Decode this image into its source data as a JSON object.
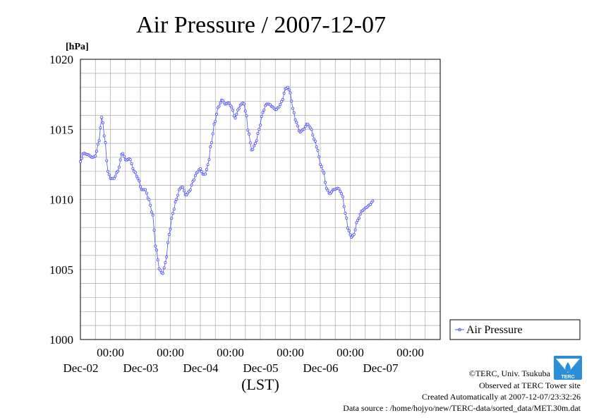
{
  "chart_data": {
    "type": "line",
    "title": "Air Pressure / 2007-12-07",
    "ylabel": "[hPa]",
    "xlabel": "(LST)",
    "ylim": [
      1000,
      1020
    ],
    "yticks": [
      1000,
      1005,
      1010,
      1015,
      1020
    ],
    "ytick_labels": [
      "1000",
      "1005",
      "1010",
      "1015",
      "1020"
    ],
    "xlim": [
      0,
      6
    ],
    "x_unit": "days (Dec-01 12:00 LST to Dec-07 12:00 LST, 30-min samples)",
    "x_ticks": [
      {
        "time": "00:00",
        "date": "Dec-02"
      },
      {
        "time": "00:00",
        "date": "Dec-03"
      },
      {
        "time": "00:00",
        "date": "Dec-04"
      },
      {
        "time": "00:00",
        "date": "Dec-05"
      },
      {
        "time": "00:00",
        "date": "Dec-06"
      },
      {
        "time": "00:00",
        "date": "Dec-07"
      }
    ],
    "grid": true,
    "legend_position": "right",
    "series": [
      {
        "name": "Air Pressure",
        "color": "#3333ff",
        "keypoints": [
          [
            0.0,
            1012.7
          ],
          [
            0.05,
            1013.3
          ],
          [
            0.12,
            1013.2
          ],
          [
            0.2,
            1013.0
          ],
          [
            0.25,
            1013.1
          ],
          [
            0.3,
            1014.0
          ],
          [
            0.36,
            1015.9
          ],
          [
            0.4,
            1014.5
          ],
          [
            0.46,
            1012.0
          ],
          [
            0.5,
            1011.5
          ],
          [
            0.56,
            1011.5
          ],
          [
            0.62,
            1012.0
          ],
          [
            0.7,
            1013.3
          ],
          [
            0.76,
            1012.8
          ],
          [
            0.82,
            1012.9
          ],
          [
            0.9,
            1012.0
          ],
          [
            0.96,
            1011.5
          ],
          [
            1.02,
            1010.7
          ],
          [
            1.08,
            1010.7
          ],
          [
            1.14,
            1010.0
          ],
          [
            1.2,
            1009.0
          ],
          [
            1.26,
            1006.5
          ],
          [
            1.32,
            1005.0
          ],
          [
            1.37,
            1004.7
          ],
          [
            1.42,
            1005.5
          ],
          [
            1.48,
            1007.5
          ],
          [
            1.54,
            1009.0
          ],
          [
            1.6,
            1010.0
          ],
          [
            1.66,
            1010.8
          ],
          [
            1.7,
            1010.9
          ],
          [
            1.76,
            1010.3
          ],
          [
            1.82,
            1010.6
          ],
          [
            1.88,
            1011.3
          ],
          [
            1.94,
            1011.9
          ],
          [
            2.0,
            1012.2
          ],
          [
            2.04,
            1011.8
          ],
          [
            2.08,
            1011.8
          ],
          [
            2.13,
            1012.5
          ],
          [
            2.18,
            1014.0
          ],
          [
            2.24,
            1015.5
          ],
          [
            2.3,
            1016.6
          ],
          [
            2.36,
            1017.1
          ],
          [
            2.42,
            1016.8
          ],
          [
            2.47,
            1016.9
          ],
          [
            2.52,
            1016.6
          ],
          [
            2.58,
            1015.8
          ],
          [
            2.63,
            1016.4
          ],
          [
            2.68,
            1016.8
          ],
          [
            2.72,
            1016.9
          ],
          [
            2.76,
            1016.2
          ],
          [
            2.8,
            1014.8
          ],
          [
            2.86,
            1013.5
          ],
          [
            2.92,
            1014.0
          ],
          [
            2.98,
            1015.0
          ],
          [
            3.04,
            1016.2
          ],
          [
            3.1,
            1016.8
          ],
          [
            3.15,
            1016.8
          ],
          [
            3.2,
            1016.6
          ],
          [
            3.26,
            1016.4
          ],
          [
            3.31,
            1016.6
          ],
          [
            3.36,
            1017.0
          ],
          [
            3.42,
            1017.9
          ],
          [
            3.46,
            1018.0
          ],
          [
            3.5,
            1017.6
          ],
          [
            3.54,
            1016.5
          ],
          [
            3.6,
            1015.5
          ],
          [
            3.66,
            1014.8
          ],
          [
            3.72,
            1015.0
          ],
          [
            3.78,
            1015.4
          ],
          [
            3.84,
            1015.1
          ],
          [
            3.9,
            1014.3
          ],
          [
            3.96,
            1013.5
          ],
          [
            4.0,
            1012.5
          ],
          [
            4.06,
            1011.9
          ],
          [
            4.1,
            1010.8
          ],
          [
            4.16,
            1010.4
          ],
          [
            4.22,
            1010.7
          ],
          [
            4.3,
            1010.8
          ],
          [
            4.36,
            1010.4
          ],
          [
            4.42,
            1009.0
          ],
          [
            4.47,
            1007.8
          ],
          [
            4.52,
            1007.3
          ],
          [
            4.56,
            1007.5
          ],
          [
            4.62,
            1008.5
          ],
          [
            4.7,
            1009.2
          ],
          [
            4.76,
            1009.4
          ],
          [
            4.82,
            1009.6
          ],
          [
            4.88,
            1009.9
          ]
        ]
      }
    ]
  },
  "legend": {
    "label": "Air Pressure"
  },
  "credits": {
    "copyright": "©TERC, Univ. Tsukuba",
    "observed": "Observed at TERC Tower site",
    "created": "Created Automatically at 2007-12-07/23:32:26",
    "source": "Data source : /home/hojyo/new/TERC-data/sorted_data/MET.30m.dat",
    "logo_text": "TERC"
  }
}
